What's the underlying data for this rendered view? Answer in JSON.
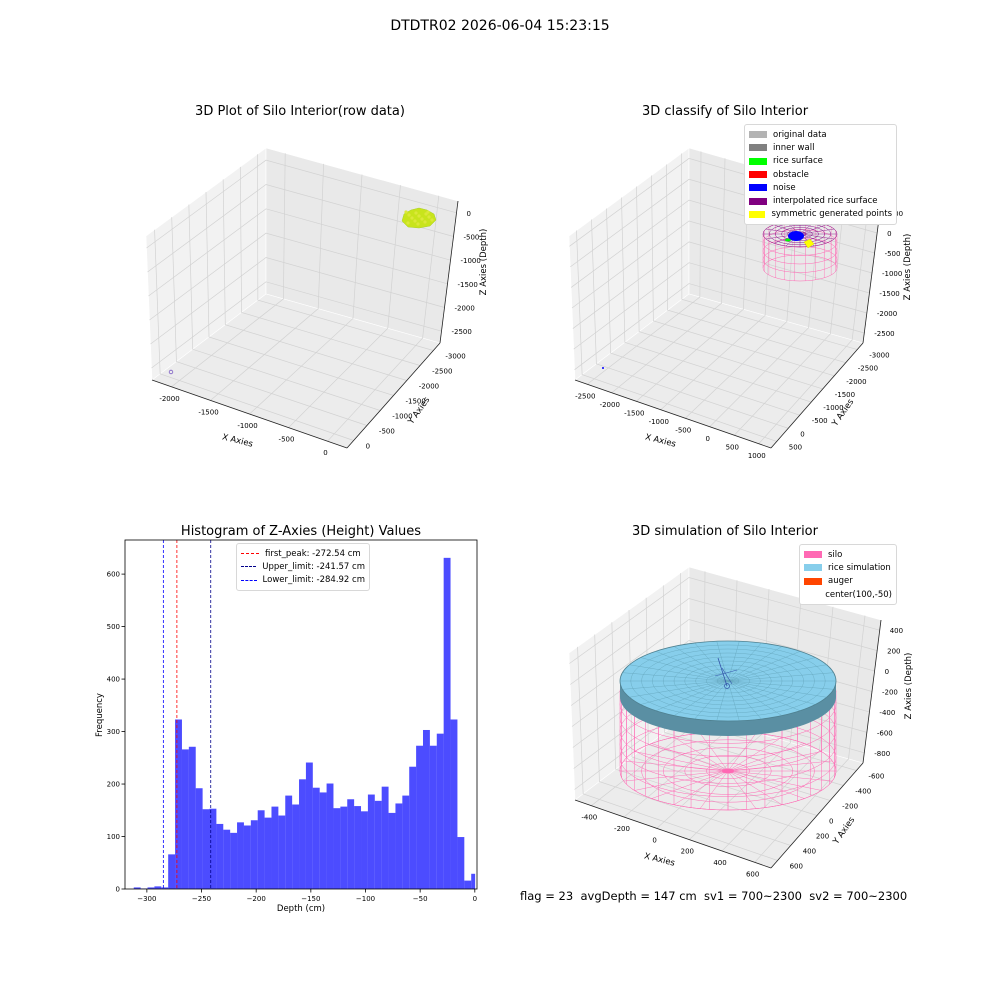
{
  "figure": {
    "suptitle": "DTDTR02 2026-06-04 15:23:15",
    "status_text": "flag = 23  avgDepth = 147 cm  sv1 = 700~2300  sv2 = 700~2300"
  },
  "panel_raw": {
    "title": "3D Plot of Silo Interior(row data)",
    "xlabel": "X Axies",
    "ylabel": "Y Axies",
    "zlabel": "Z Axies (Depth)",
    "xticks": [
      "-2000",
      "-1500",
      "-1000",
      "-500",
      "0"
    ],
    "yticks": [
      "0",
      "-500",
      "-1000",
      "-1500",
      "-2000",
      "-2500",
      "-3000"
    ],
    "zticks": [
      "0",
      "-500",
      "-1000",
      "-1500",
      "-2000",
      "-2500"
    ],
    "colors": {
      "points": "#c8e41c",
      "outlier": "#7b5cc4"
    }
  },
  "panel_classify": {
    "title": "3D classify of Silo Interior",
    "xlabel": "X Axies",
    "ylabel": "Y Axies",
    "zlabel": "Z Axies (Depth)",
    "xticks": [
      "-2500",
      "-2000",
      "-1500",
      "-1000",
      "-500",
      "0",
      "500",
      "1000"
    ],
    "yticks": [
      "500",
      "0",
      "-500",
      "-1000",
      "-1500",
      "-2000",
      "-2500",
      "-3000"
    ],
    "zticks": [
      "500",
      "0",
      "-500",
      "-1000",
      "-1500",
      "-2000",
      "-2500"
    ],
    "legend": [
      {
        "label": "original data",
        "color": "#b3b3b3"
      },
      {
        "label": "inner wall",
        "color": "#808080"
      },
      {
        "label": "rice surface",
        "color": "#00ff00"
      },
      {
        "label": "obstacle",
        "color": "#ff0000"
      },
      {
        "label": "noise",
        "color": "#0000ff"
      },
      {
        "label": "interpolated rice surface",
        "color": "#800080"
      },
      {
        "label": "symmetric generated points",
        "color": "#ffff00"
      }
    ]
  },
  "panel_sim": {
    "title": "3D simulation of Silo Interior",
    "xlabel": "X Axies",
    "ylabel": "Y Axies",
    "zlabel": "Z Axies (Depth)",
    "xticks": [
      "-400",
      "-200",
      "0",
      "200",
      "400",
      "600"
    ],
    "yticks": [
      "600",
      "400",
      "200",
      "0",
      "-200",
      "-400",
      "-600"
    ],
    "zticks": [
      "400",
      "200",
      "0",
      "-200",
      "-400",
      "-600",
      "-800"
    ],
    "legend": [
      {
        "label": "silo",
        "color": "#ff69b4"
      },
      {
        "label": "rice simulation",
        "color": "#87ceeb"
      },
      {
        "label": "auger",
        "color": "#ff4500"
      },
      {
        "label": "center(100,-50)",
        "color": ""
      }
    ]
  },
  "chart_data": {
    "type": "bar",
    "title": "Histogram of Z-Axies (Height) Values",
    "xlabel": "Depth (cm)",
    "ylabel": "Frequency",
    "xlim": [
      -320,
      2
    ],
    "ylim": [
      0,
      665
    ],
    "xticks": [
      -300,
      -250,
      -200,
      -150,
      -100,
      -50,
      0
    ],
    "yticks": [
      0,
      100,
      200,
      300,
      400,
      500,
      600
    ],
    "bar_color": "#0000ff",
    "bins": [
      {
        "x0": -312,
        "x1": -305.7,
        "count": 3
      },
      {
        "x0": -305.7,
        "x1": -299.4,
        "count": 1
      },
      {
        "x0": -299.4,
        "x1": -293.1,
        "count": 3
      },
      {
        "x0": -293.1,
        "x1": -286.8,
        "count": 5
      },
      {
        "x0": -286.8,
        "x1": -280.5,
        "count": 3
      },
      {
        "x0": -280.5,
        "x1": -274.2,
        "count": 66
      },
      {
        "x0": -274.2,
        "x1": -267.9,
        "count": 323
      },
      {
        "x0": -267.9,
        "x1": -261.6,
        "count": 266
      },
      {
        "x0": -261.6,
        "x1": -255.3,
        "count": 271
      },
      {
        "x0": -255.3,
        "x1": -249.0,
        "count": 192
      },
      {
        "x0": -249.0,
        "x1": -242.7,
        "count": 152
      },
      {
        "x0": -242.7,
        "x1": -236.4,
        "count": 153
      },
      {
        "x0": -236.4,
        "x1": -230.1,
        "count": 124
      },
      {
        "x0": -230.1,
        "x1": -223.8,
        "count": 113
      },
      {
        "x0": -223.8,
        "x1": -217.5,
        "count": 107
      },
      {
        "x0": -217.5,
        "x1": -211.2,
        "count": 127
      },
      {
        "x0": -211.2,
        "x1": -204.9,
        "count": 121
      },
      {
        "x0": -204.9,
        "x1": -198.6,
        "count": 131
      },
      {
        "x0": -198.6,
        "x1": -192.3,
        "count": 150
      },
      {
        "x0": -192.3,
        "x1": -186.0,
        "count": 136
      },
      {
        "x0": -186.0,
        "x1": -179.7,
        "count": 157
      },
      {
        "x0": -179.7,
        "x1": -173.4,
        "count": 140
      },
      {
        "x0": -173.4,
        "x1": -167.1,
        "count": 178
      },
      {
        "x0": -167.1,
        "x1": -160.8,
        "count": 161
      },
      {
        "x0": -160.8,
        "x1": -154.5,
        "count": 209
      },
      {
        "x0": -154.5,
        "x1": -148.2,
        "count": 241
      },
      {
        "x0": -148.2,
        "x1": -141.9,
        "count": 193
      },
      {
        "x0": -141.9,
        "x1": -135.6,
        "count": 184
      },
      {
        "x0": -135.6,
        "x1": -129.3,
        "count": 201
      },
      {
        "x0": -129.3,
        "x1": -123.0,
        "count": 154
      },
      {
        "x0": -123.0,
        "x1": -116.7,
        "count": 157
      },
      {
        "x0": -116.7,
        "x1": -110.4,
        "count": 171
      },
      {
        "x0": -110.4,
        "x1": -104.1,
        "count": 158
      },
      {
        "x0": -104.1,
        "x1": -97.8,
        "count": 148
      },
      {
        "x0": -97.8,
        "x1": -91.5,
        "count": 180
      },
      {
        "x0": -91.5,
        "x1": -85.2,
        "count": 168
      },
      {
        "x0": -85.2,
        "x1": -78.9,
        "count": 195
      },
      {
        "x0": -78.9,
        "x1": -72.6,
        "count": 145
      },
      {
        "x0": -72.6,
        "x1": -66.3,
        "count": 163
      },
      {
        "x0": -66.3,
        "x1": -60.0,
        "count": 178
      },
      {
        "x0": -60.0,
        "x1": -53.7,
        "count": 233
      },
      {
        "x0": -53.7,
        "x1": -47.4,
        "count": 273
      },
      {
        "x0": -47.4,
        "x1": -41.1,
        "count": 303
      },
      {
        "x0": -41.1,
        "x1": -34.8,
        "count": 273
      },
      {
        "x0": -34.8,
        "x1": -28.5,
        "count": 296
      },
      {
        "x0": -28.5,
        "x1": -22.2,
        "count": 631
      },
      {
        "x0": -22.2,
        "x1": -15.9,
        "count": 323
      },
      {
        "x0": -15.9,
        "x1": -9.6,
        "count": 99
      },
      {
        "x0": -9.6,
        "x1": -3.3,
        "count": 16
      },
      {
        "x0": -3.3,
        "x1": 0.3,
        "count": 29
      }
    ],
    "vlines": [
      {
        "label": "first_peak: -272.54 cm",
        "x": -272.54,
        "color": "#ff0000"
      },
      {
        "label": "Upper_limit: -241.57 cm",
        "x": -241.57,
        "color": "#00008b"
      },
      {
        "label": "Lower_limit: -284.92 cm",
        "x": -284.92,
        "color": "#0000ff"
      }
    ]
  }
}
